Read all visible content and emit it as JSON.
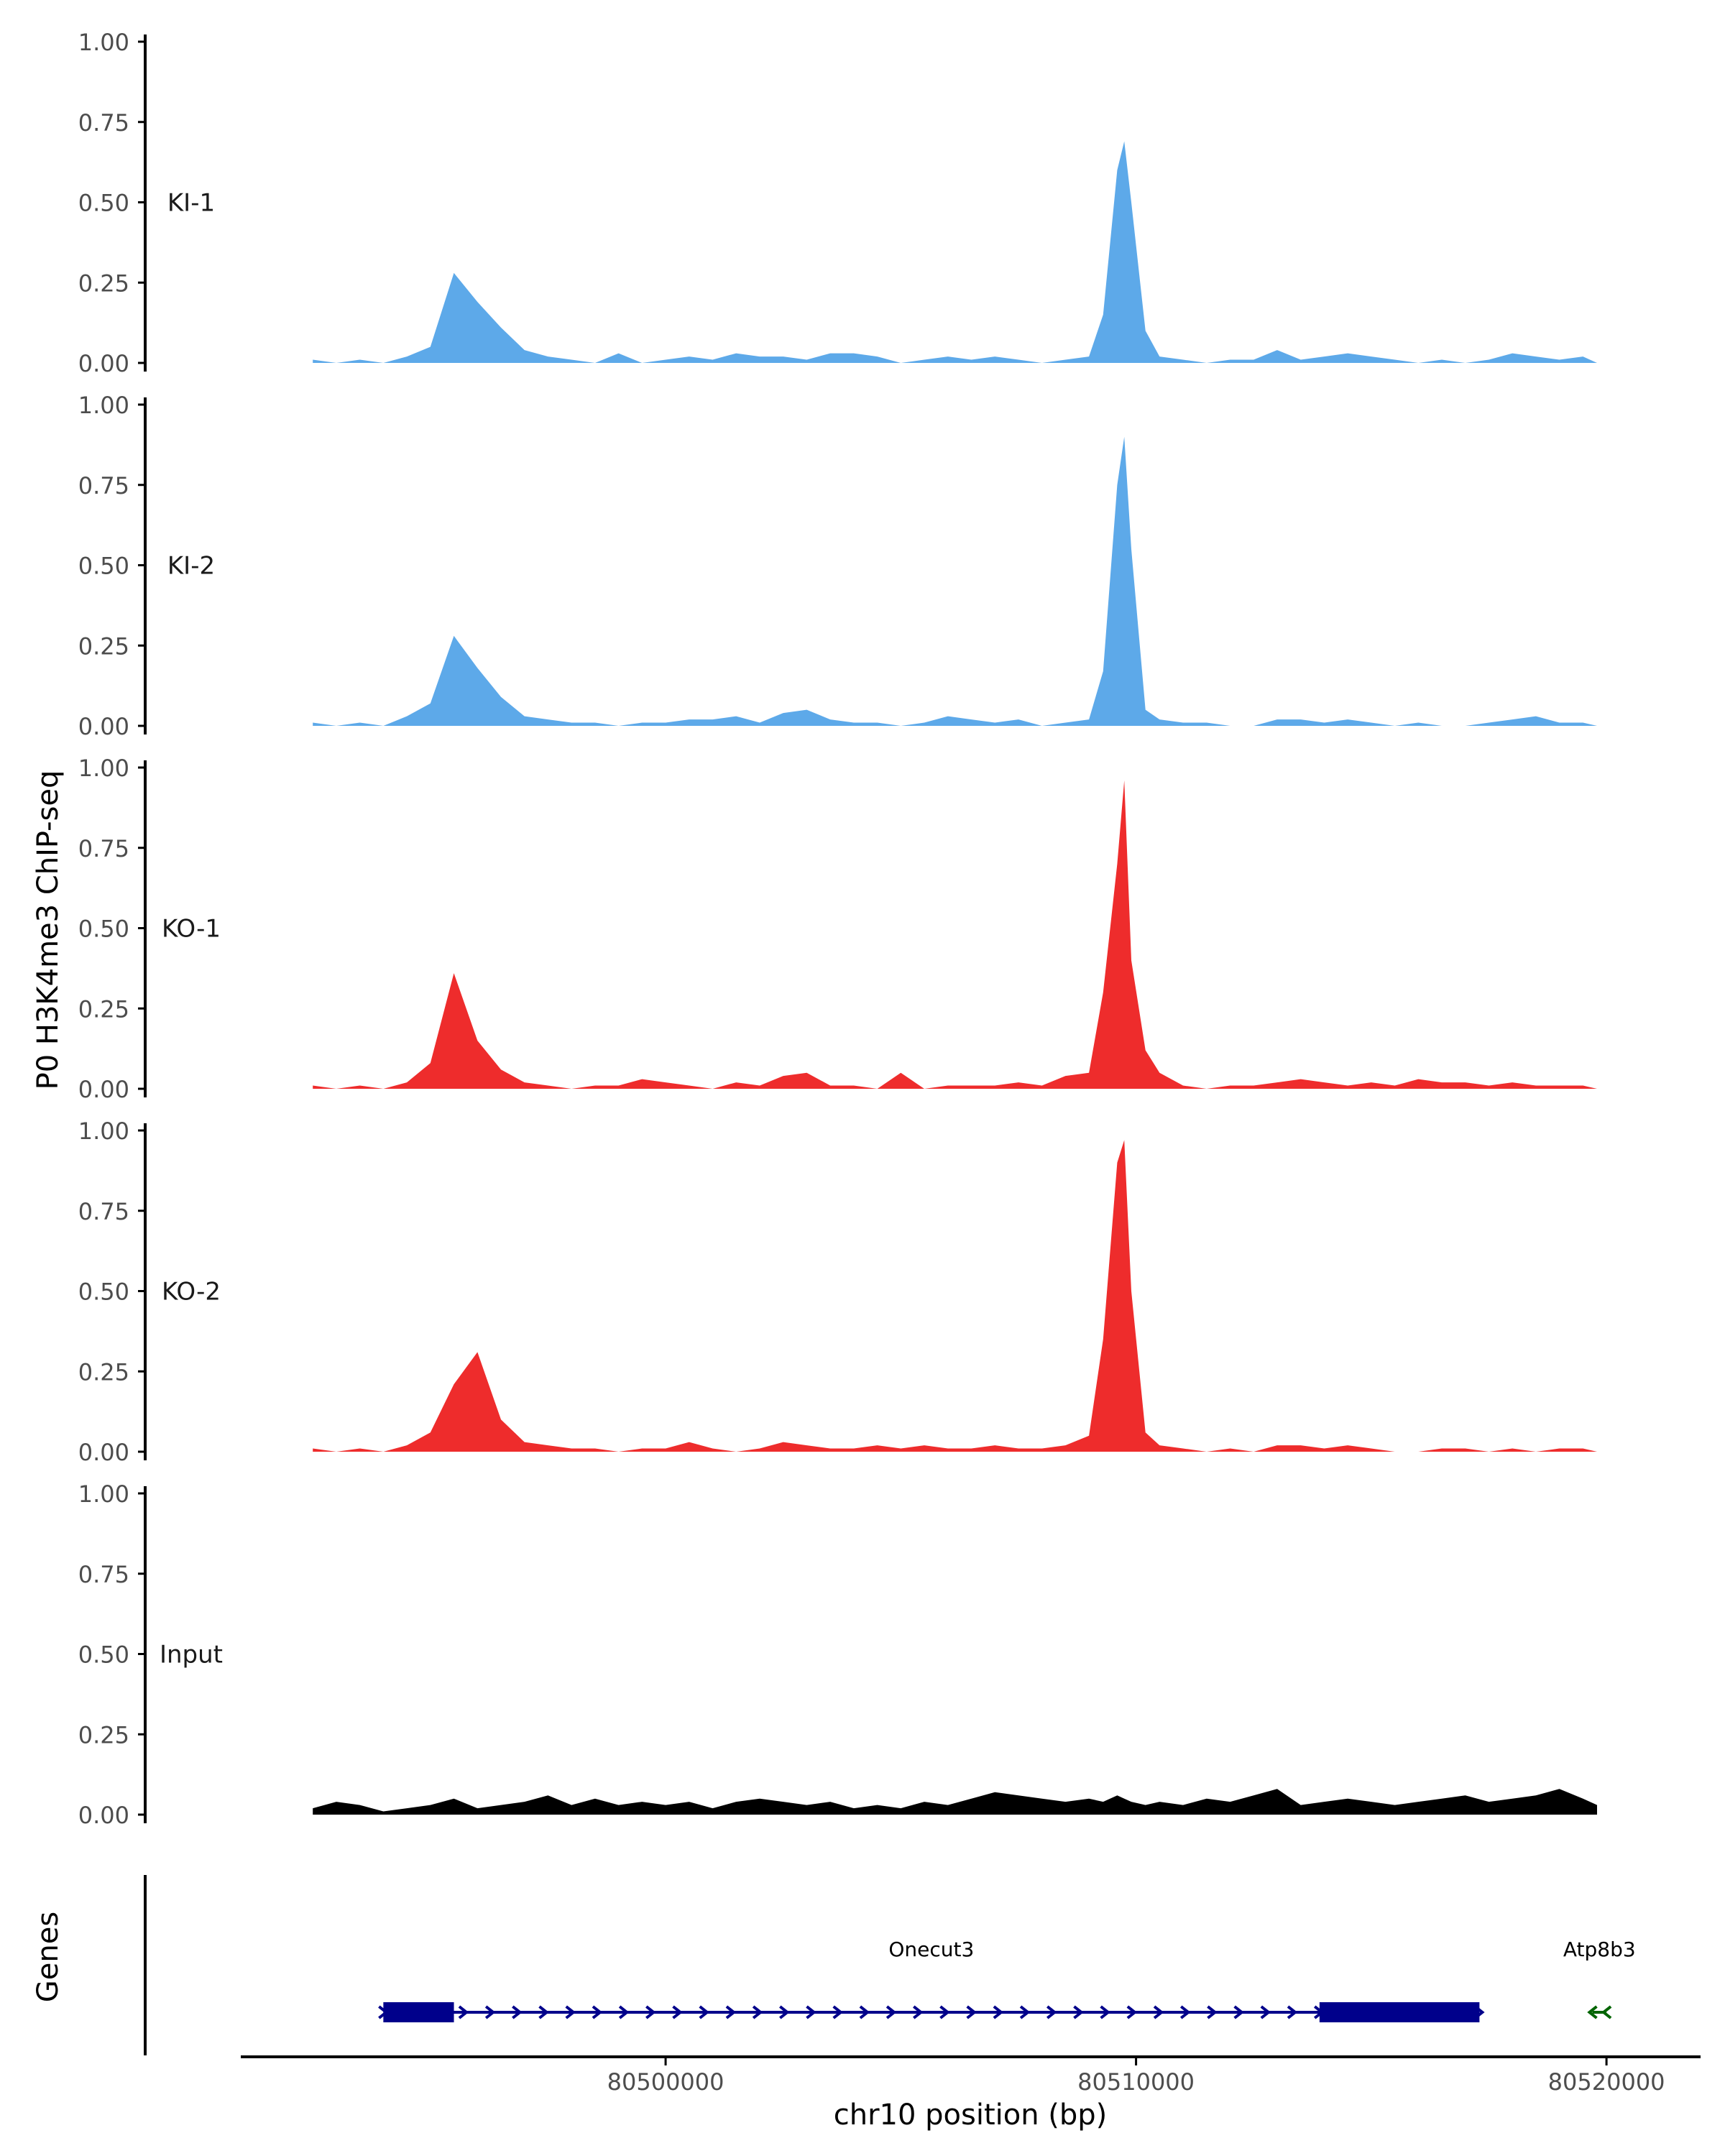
{
  "chart_data": {
    "type": "area",
    "ylabel": "P0 H3K4me3 ChIP-seq",
    "xlabel": "chr10 position (bp)",
    "genes_label": "Genes",
    "ylim": [
      0,
      1
    ],
    "y_ticks": [
      0,
      0.25,
      0.5,
      0.75,
      1.0
    ],
    "y_tick_labels": [
      "0.00",
      "0.25",
      "0.50",
      "0.75",
      "1.00"
    ],
    "x_range": [
      80491000,
      80522000
    ],
    "x_ticks": [
      80500000,
      80510000,
      80520000
    ],
    "x_tick_labels": [
      "80500000",
      "80510000",
      "80520000"
    ],
    "grid": false,
    "tracks": [
      {
        "name": "KI-1",
        "color": "#5DA9E9",
        "x": [
          80492500,
          80493000,
          80493500,
          80494000,
          80494500,
          80495000,
          80495500,
          80496000,
          80496500,
          80497000,
          80497500,
          80498000,
          80498500,
          80499000,
          80499500,
          80500000,
          80500500,
          80501000,
          80501500,
          80502000,
          80502500,
          80503000,
          80503500,
          80504000,
          80504500,
          80505000,
          80505500,
          80506000,
          80506500,
          80507000,
          80507500,
          80508000,
          80508500,
          80509000,
          80509300,
          80509600,
          80509750,
          80509900,
          80510200,
          80510500,
          80511000,
          80511500,
          80512000,
          80512500,
          80513000,
          80513500,
          80514000,
          80514500,
          80515000,
          80515500,
          80516000,
          80516500,
          80517000,
          80517500,
          80518000,
          80518500,
          80519000,
          80519500,
          80519800
        ],
        "values": [
          0.01,
          0,
          0.01,
          0,
          0.02,
          0.05,
          0.28,
          0.19,
          0.11,
          0.04,
          0.02,
          0.01,
          0,
          0.03,
          0,
          0.01,
          0.02,
          0.01,
          0.03,
          0.02,
          0.02,
          0.01,
          0.03,
          0.03,
          0.02,
          0,
          0.01,
          0.02,
          0.01,
          0.02,
          0.01,
          0,
          0.01,
          0.02,
          0.15,
          0.6,
          0.69,
          0.5,
          0.1,
          0.02,
          0.01,
          0,
          0.01,
          0.01,
          0.04,
          0.01,
          0.02,
          0.03,
          0.02,
          0.01,
          0,
          0.01,
          0,
          0.01,
          0.03,
          0.02,
          0.01,
          0.02,
          0
        ]
      },
      {
        "name": "KI-2",
        "color": "#5DA9E9",
        "x": [
          80492500,
          80493000,
          80493500,
          80494000,
          80494500,
          80495000,
          80495500,
          80496000,
          80496500,
          80497000,
          80497500,
          80498000,
          80498500,
          80499000,
          80499500,
          80500000,
          80500500,
          80501000,
          80501500,
          80502000,
          80502500,
          80503000,
          80503500,
          80504000,
          80504500,
          80505000,
          80505500,
          80506000,
          80506500,
          80507000,
          80507500,
          80508000,
          80508500,
          80509000,
          80509300,
          80509600,
          80509750,
          80509900,
          80510200,
          80510500,
          80511000,
          80511500,
          80512000,
          80512500,
          80513000,
          80513500,
          80514000,
          80514500,
          80515000,
          80515500,
          80516000,
          80516500,
          80517000,
          80517500,
          80518000,
          80518500,
          80519000,
          80519500,
          80519800
        ],
        "values": [
          0.01,
          0,
          0.01,
          0,
          0.03,
          0.07,
          0.28,
          0.18,
          0.09,
          0.03,
          0.02,
          0.01,
          0.01,
          0,
          0.01,
          0.01,
          0.02,
          0.02,
          0.03,
          0.01,
          0.04,
          0.05,
          0.02,
          0.01,
          0.01,
          0,
          0.01,
          0.03,
          0.02,
          0.01,
          0.02,
          0,
          0.01,
          0.02,
          0.17,
          0.75,
          0.9,
          0.55,
          0.05,
          0.02,
          0.01,
          0.01,
          0,
          0,
          0.02,
          0.02,
          0.01,
          0.02,
          0.01,
          0,
          0.01,
          0,
          0,
          0.01,
          0.02,
          0.03,
          0.01,
          0.01,
          0
        ]
      },
      {
        "name": "KO-1",
        "color": "#EE2C2C",
        "x": [
          80492500,
          80493000,
          80493500,
          80494000,
          80494500,
          80495000,
          80495500,
          80496000,
          80496500,
          80497000,
          80497500,
          80498000,
          80498500,
          80499000,
          80499500,
          80500000,
          80500500,
          80501000,
          80501500,
          80502000,
          80502500,
          80503000,
          80503500,
          80504000,
          80504500,
          80505000,
          80505500,
          80506000,
          80506500,
          80507000,
          80507500,
          80508000,
          80508500,
          80509000,
          80509300,
          80509600,
          80509750,
          80509900,
          80510200,
          80510500,
          80511000,
          80511500,
          80512000,
          80512500,
          80513000,
          80513500,
          80514000,
          80514500,
          80515000,
          80515500,
          80516000,
          80516500,
          80517000,
          80517500,
          80518000,
          80518500,
          80519000,
          80519500,
          80519800
        ],
        "values": [
          0.01,
          0,
          0.01,
          0,
          0.02,
          0.08,
          0.36,
          0.15,
          0.06,
          0.02,
          0.01,
          0,
          0.01,
          0.01,
          0.03,
          0.02,
          0.01,
          0,
          0.02,
          0.01,
          0.04,
          0.05,
          0.01,
          0.01,
          0,
          0.05,
          0,
          0.01,
          0.01,
          0.01,
          0.02,
          0.01,
          0.04,
          0.05,
          0.3,
          0.7,
          0.96,
          0.4,
          0.12,
          0.05,
          0.01,
          0,
          0.01,
          0.01,
          0.02,
          0.03,
          0.02,
          0.01,
          0.02,
          0.01,
          0.03,
          0.02,
          0.02,
          0.01,
          0.02,
          0.01,
          0.01,
          0.01,
          0
        ]
      },
      {
        "name": "KO-2",
        "color": "#EE2C2C",
        "x": [
          80492500,
          80493000,
          80493500,
          80494000,
          80494500,
          80495000,
          80495500,
          80496000,
          80496500,
          80497000,
          80497500,
          80498000,
          80498500,
          80499000,
          80499500,
          80500000,
          80500500,
          80501000,
          80501500,
          80502000,
          80502500,
          80503000,
          80503500,
          80504000,
          80504500,
          80505000,
          80505500,
          80506000,
          80506500,
          80507000,
          80507500,
          80508000,
          80508500,
          80509000,
          80509300,
          80509600,
          80509750,
          80509900,
          80510200,
          80510500,
          80511000,
          80511500,
          80512000,
          80512500,
          80513000,
          80513500,
          80514000,
          80514500,
          80515000,
          80515500,
          80516000,
          80516500,
          80517000,
          80517500,
          80518000,
          80518500,
          80519000,
          80519500,
          80519800
        ],
        "values": [
          0.01,
          0,
          0.01,
          0,
          0.02,
          0.06,
          0.21,
          0.31,
          0.1,
          0.03,
          0.02,
          0.01,
          0.01,
          0,
          0.01,
          0.01,
          0.03,
          0.01,
          0,
          0.01,
          0.03,
          0.02,
          0.01,
          0.01,
          0.02,
          0.01,
          0.02,
          0.01,
          0.01,
          0.02,
          0.01,
          0.01,
          0.02,
          0.05,
          0.35,
          0.9,
          0.97,
          0.5,
          0.06,
          0.02,
          0.01,
          0,
          0.01,
          0,
          0.02,
          0.02,
          0.01,
          0.02,
          0.01,
          0,
          0,
          0.01,
          0.01,
          0,
          0.01,
          0,
          0.01,
          0.01,
          0
        ]
      },
      {
        "name": "Input",
        "color": "#000000",
        "x": [
          80492500,
          80493000,
          80493500,
          80494000,
          80494500,
          80495000,
          80495500,
          80496000,
          80496500,
          80497000,
          80497500,
          80498000,
          80498500,
          80499000,
          80499500,
          80500000,
          80500500,
          80501000,
          80501500,
          80502000,
          80502500,
          80503000,
          80503500,
          80504000,
          80504500,
          80505000,
          80505500,
          80506000,
          80506500,
          80507000,
          80507500,
          80508000,
          80508500,
          80509000,
          80509300,
          80509600,
          80509750,
          80509900,
          80510200,
          80510500,
          80511000,
          80511500,
          80512000,
          80512500,
          80513000,
          80513500,
          80514000,
          80514500,
          80515000,
          80515500,
          80516000,
          80516500,
          80517000,
          80517500,
          80518000,
          80518500,
          80519000,
          80519500,
          80519800
        ],
        "values": [
          0.02,
          0.04,
          0.03,
          0.01,
          0.02,
          0.03,
          0.05,
          0.02,
          0.03,
          0.04,
          0.06,
          0.03,
          0.05,
          0.03,
          0.04,
          0.03,
          0.04,
          0.02,
          0.04,
          0.05,
          0.04,
          0.03,
          0.04,
          0.02,
          0.03,
          0.02,
          0.04,
          0.03,
          0.05,
          0.07,
          0.06,
          0.05,
          0.04,
          0.05,
          0.04,
          0.06,
          0.05,
          0.04,
          0.03,
          0.04,
          0.03,
          0.05,
          0.04,
          0.06,
          0.08,
          0.03,
          0.04,
          0.05,
          0.04,
          0.03,
          0.04,
          0.05,
          0.06,
          0.04,
          0.05,
          0.06,
          0.08,
          0.05,
          0.03
        ]
      }
    ],
    "genes": [
      {
        "name": "Onecut3",
        "color": "#00008B",
        "strand": "+",
        "start": 80494000,
        "end": 80517300,
        "exons": [
          [
            80494000,
            80495500
          ],
          [
            80513900,
            80517300
          ]
        ]
      },
      {
        "name": "Atp8b3",
        "color": "#006400",
        "strand": "-",
        "start": 80519700,
        "end": 80520000,
        "exons": []
      }
    ]
  }
}
